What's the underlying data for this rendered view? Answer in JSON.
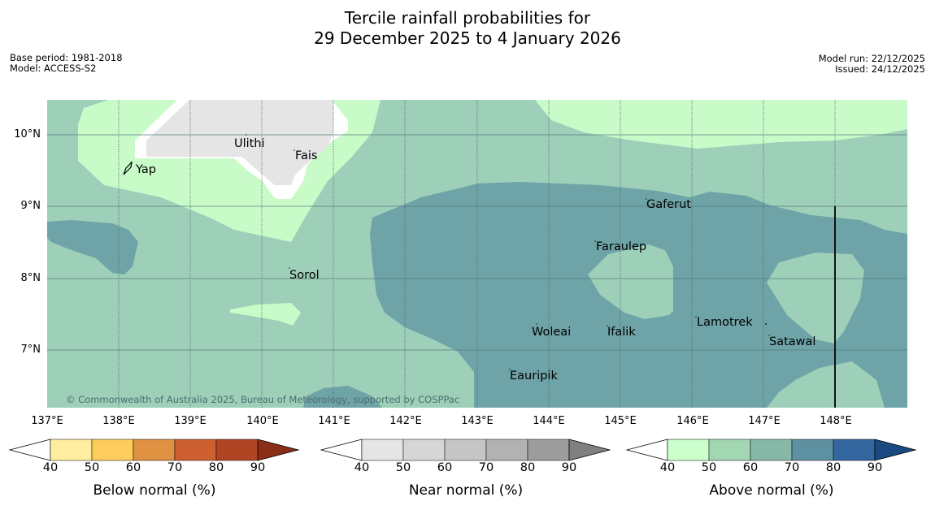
{
  "title_line1": "Tercile rainfall probabilities for",
  "title_line2": "29 December 2025 to 4 January 2026",
  "base_period": "Base period: 1981-2018",
  "model": "Model: ACCESS-S2",
  "model_run": "Model run: 22/12/2025",
  "issued": "Issued: 24/12/2025",
  "copyright": "© Commonwealth of Australia 2025, Bureau of Meteorology, supported by COSPPac",
  "lat_labels": [
    "10°N",
    "9°N",
    "8°N",
    "7°N"
  ],
  "lon_labels": [
    "137°E",
    "138°E",
    "139°E",
    "140°E",
    "141°E",
    "142°E",
    "143°E",
    "144°E",
    "145°E",
    "146°E",
    "147°E",
    "148°E"
  ],
  "places": [
    "Ulithi",
    "Fais",
    "Yap",
    "Gaferut",
    "Faraulep",
    "Sorol",
    "Lamotrek",
    "Woleai",
    "Ifalik",
    "Satawal",
    "Eauripik"
  ],
  "colorbars": [
    {
      "label": "Below normal (%)",
      "ticks": [
        "40",
        "50",
        "60",
        "70",
        "80",
        "90"
      ],
      "colors": [
        "#ffffff",
        "#ffeda0",
        "#fecc5c",
        "#e09142",
        "#cd5f30",
        "#af4523",
        "#8b2e17"
      ]
    },
    {
      "label": "Near normal (%)",
      "ticks": [
        "40",
        "50",
        "60",
        "70",
        "80",
        "90"
      ],
      "colors": [
        "#ffffff",
        "#e5e5e5",
        "#d6d6d6",
        "#c5c5c5",
        "#b2b2b2",
        "#9d9d9d",
        "#808080"
      ]
    },
    {
      "label": "Above normal (%)",
      "ticks": [
        "40",
        "50",
        "60",
        "70",
        "80",
        "90"
      ],
      "colors": [
        "#ffffff",
        "#ccffcc",
        "#a3d6b3",
        "#87b8a8",
        "#5d90a0",
        "#34669f",
        "#1a4a82"
      ]
    }
  ],
  "map_colors": {
    "above_50_60": "#9dcfb9",
    "above_40_50": "#c8fbc8",
    "above_60_70": "#6ea3a7",
    "near_40_50": "#e5e5e5"
  }
}
